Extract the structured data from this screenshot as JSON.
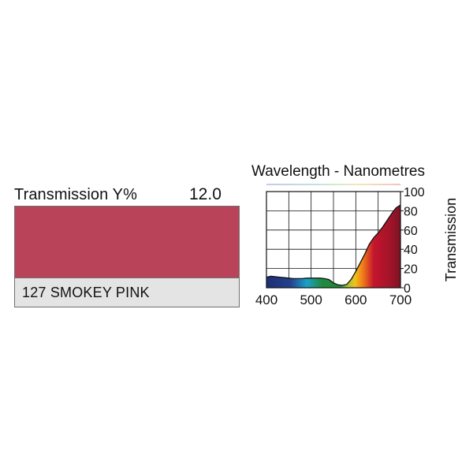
{
  "filter": {
    "transmission_label": "Transmission Y%",
    "transmission_value": "12.0",
    "name": "127 SMOKEY PINK",
    "swatch_color": "#b94459"
  },
  "colors": {
    "fill_red": "#c4152e",
    "fill_dark_red": "#7a1425",
    "fill_blue": "#1f2e73",
    "fill_green": "#1e8a3a",
    "fill_yellow": "#f0c21e",
    "outline": "#111111"
  },
  "chart_data": {
    "type": "area",
    "title": "Wavelength - Nanometres",
    "xlabel": "",
    "ylabel": "Transmission",
    "xlim": [
      400,
      700
    ],
    "ylim": [
      0,
      100
    ],
    "xticks": [
      400,
      500,
      600,
      700
    ],
    "yticks": [
      0,
      20,
      40,
      60,
      80,
      100
    ],
    "grid": true,
    "x": [
      400,
      410,
      420,
      430,
      440,
      450,
      460,
      470,
      480,
      490,
      500,
      510,
      520,
      530,
      540,
      550,
      560,
      570,
      580,
      590,
      600,
      610,
      620,
      630,
      640,
      650,
      660,
      670,
      680,
      690,
      700
    ],
    "values": [
      11,
      12,
      11.5,
      11,
      10.5,
      10,
      9.5,
      9.5,
      9.5,
      10,
      10,
      10,
      10,
      9.5,
      8.5,
      5,
      3,
      2.5,
      3.5,
      9,
      17,
      26,
      35,
      45,
      52,
      57,
      63,
      70,
      77,
      83,
      86
    ]
  }
}
